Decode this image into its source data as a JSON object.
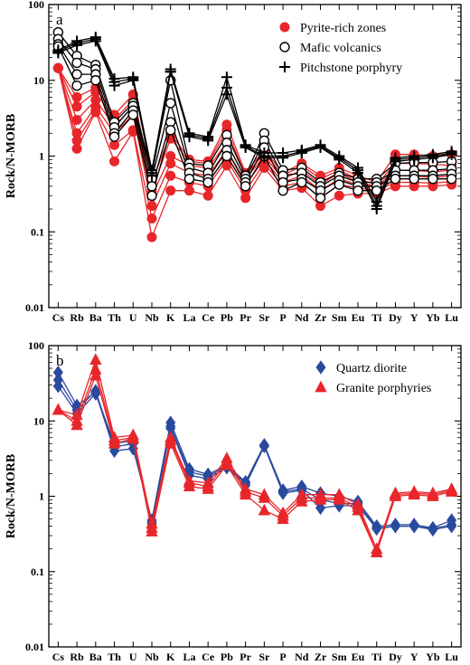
{
  "chart_data": [
    {
      "type": "line",
      "panel_label": "a",
      "ylabel": "Rock/N-MORB",
      "yscale": "log",
      "ylim": [
        0.01,
        100
      ],
      "yticks": [
        "0.01",
        "0.1",
        "1",
        "10",
        "100"
      ],
      "categories": [
        "Cs",
        "Rb",
        "Ba",
        "Th",
        "U",
        "Nb",
        "K",
        "La",
        "Ce",
        "Pb",
        "Pr",
        "Sr",
        "P",
        "Nd",
        "Zr",
        "Sm",
        "Eu",
        "Ti",
        "Dy",
        "Y",
        "Yb",
        "Lu"
      ],
      "legend_position": "top-right",
      "series": [
        {
          "name": "Pyrite-rich zones",
          "color": "#e8262a",
          "marker": "filled-circle",
          "samples": [
            [
              14.5,
              6.0,
              8.0,
              3.5,
              6.5,
              0.45,
              2.0,
              0.9,
              0.85,
              2.6,
              0.6,
              1.2,
              0.6,
              0.8,
              0.55,
              0.7,
              0.55,
              0.45,
              1.05,
              1.05,
              1.0,
              1.05
            ],
            [
              14.5,
              4.5,
              7.0,
              3.0,
              5.5,
              0.35,
              1.7,
              0.85,
              0.8,
              2.2,
              0.55,
              1.1,
              0.55,
              0.75,
              0.5,
              0.65,
              0.5,
              0.42,
              0.8,
              0.8,
              0.78,
              0.75
            ],
            [
              14.5,
              3.0,
              5.5,
              2.5,
              4.5,
              0.3,
              1.0,
              0.75,
              0.7,
              1.5,
              0.5,
              1.0,
              0.5,
              0.65,
              0.42,
              0.6,
              0.45,
              0.4,
              0.65,
              0.65,
              0.62,
              0.65
            ],
            [
              14.5,
              2.0,
              4.5,
              2.0,
              3.5,
              0.22,
              0.8,
              0.6,
              0.55,
              1.2,
              0.42,
              0.9,
              0.45,
              0.55,
              0.35,
              0.5,
              0.42,
              0.38,
              0.55,
              0.55,
              0.52,
              0.55
            ],
            [
              14.5,
              1.6,
              4.0,
              1.4,
              2.2,
              0.15,
              0.55,
              0.45,
              0.4,
              0.9,
              0.35,
              0.8,
              0.4,
              0.45,
              0.28,
              0.42,
              0.38,
              0.35,
              0.45,
              0.45,
              0.44,
              0.46
            ],
            [
              14.5,
              1.25,
              3.8,
              0.85,
              2.1,
              0.085,
              0.35,
              0.35,
              0.3,
              0.75,
              0.28,
              0.7,
              0.35,
              0.38,
              0.22,
              0.3,
              0.32,
              0.32,
              0.4,
              0.4,
              0.4,
              0.42
            ]
          ]
        },
        {
          "name": "Mafic volcanics",
          "color": "#000000",
          "marker": "open-circle",
          "samples": [
            [
              43,
              21,
              16,
              2.8,
              5.0,
              0.6,
              10.0,
              0.8,
              0.75,
              1.9,
              0.55,
              2.0,
              0.65,
              0.7,
              0.45,
              0.6,
              0.5,
              0.5,
              0.8,
              0.82,
              0.82,
              0.85
            ],
            [
              35,
              17,
              14,
              2.4,
              4.6,
              0.5,
              5.0,
              0.7,
              0.6,
              1.5,
              0.5,
              1.6,
              0.55,
              0.6,
              0.4,
              0.55,
              0.45,
              0.45,
              0.65,
              0.65,
              0.65,
              0.68
            ],
            [
              30,
              12,
              12,
              2.0,
              4.0,
              0.4,
              2.8,
              0.6,
              0.5,
              1.2,
              0.45,
              1.3,
              0.45,
              0.5,
              0.35,
              0.48,
              0.4,
              0.4,
              0.55,
              0.55,
              0.55,
              0.58
            ],
            [
              28,
              8.5,
              10,
              1.8,
              3.5,
              0.3,
              2.2,
              0.5,
              0.45,
              1.0,
              0.4,
              1.0,
              0.35,
              0.45,
              0.28,
              0.42,
              0.35,
              0.35,
              0.5,
              0.5,
              0.5,
              0.5
            ]
          ]
        },
        {
          "name": "Pitchstone porphyry",
          "color": "#000000",
          "marker": "plus",
          "samples": [
            [
              25,
              33,
              37,
              10.5,
              11,
              0.65,
              14,
              2.0,
              1.8,
              11,
              1.4,
              1.1,
              1.1,
              1.2,
              1.4,
              1.0,
              0.7,
              0.25,
              0.95,
              1.0,
              1.05,
              1.15
            ],
            [
              24,
              31,
              35,
              9.5,
              10.5,
              0.6,
              13,
              1.9,
              1.7,
              8.0,
              1.35,
              1.0,
              1.0,
              1.15,
              1.35,
              0.95,
              0.65,
              0.22,
              0.9,
              0.95,
              1.0,
              1.1
            ],
            [
              23,
              29,
              33,
              8.5,
              10,
              0.55,
              13,
              1.8,
              1.6,
              6.5,
              1.3,
              0.95,
              0.95,
              1.1,
              1.3,
              0.9,
              0.6,
              0.2,
              0.85,
              0.9,
              0.95,
              1.05
            ]
          ]
        }
      ]
    },
    {
      "type": "line",
      "panel_label": "b",
      "ylabel": "Rock/N-MORB",
      "yscale": "log",
      "ylim": [
        0.01,
        100
      ],
      "yticks": [
        "0.01",
        "0.1",
        "1",
        "10",
        "100"
      ],
      "categories": [
        "Cs",
        "Rb",
        "Ba",
        "Th",
        "U",
        "Nb",
        "K",
        "La",
        "Ce",
        "Pb",
        "Pr",
        "Sr",
        "P",
        "Nd",
        "Zr",
        "Sm",
        "Eu",
        "Ti",
        "Dy",
        "Y",
        "Yb",
        "Lu"
      ],
      "legend_position": "top-right",
      "series": [
        {
          "name": "Quartz diorite",
          "color": "#2a4a9e",
          "marker": "diamond",
          "samples": [
            [
              44,
              16,
              24,
              4.0,
              4.3,
              0.48,
              9.5,
              2.3,
              1.95,
              2.6,
              1.55,
              4.8,
              1.2,
              1.35,
              1.1,
              1.0,
              0.85,
              0.4,
              0.42,
              0.42,
              0.38,
              0.48
            ],
            [
              35,
              14,
              25,
              4.5,
              5.0,
              0.45,
              8.5,
              2.1,
              1.85,
              2.5,
              1.5,
              4.7,
              1.15,
              1.25,
              0.9,
              0.8,
              0.8,
              0.38,
              0.4,
              0.4,
              0.37,
              0.42
            ],
            [
              29,
              12.5,
              23,
              5.0,
              5.5,
              0.42,
              8.0,
              1.9,
              1.7,
              2.4,
              1.4,
              4.6,
              1.1,
              1.2,
              0.7,
              0.75,
              0.75,
              0.37,
              0.4,
              0.4,
              0.36,
              0.4
            ]
          ]
        },
        {
          "name": "Granite porphyries",
          "color": "#e8262a",
          "marker": "triangle",
          "samples": [
            [
              14,
              12,
              65,
              6.0,
              6.5,
              0.43,
              6.0,
              1.6,
              1.5,
              3.2,
              1.25,
              1.05,
              0.6,
              1.05,
              1.05,
              1.05,
              0.78,
              0.2,
              1.1,
              1.15,
              1.1,
              1.25
            ],
            [
              14,
              10,
              48,
              5.5,
              6.0,
              0.38,
              5.5,
              1.5,
              1.35,
              2.9,
              1.15,
              0.95,
              0.55,
              0.95,
              0.95,
              0.95,
              0.72,
              0.18,
              1.05,
              1.1,
              1.05,
              1.2
            ],
            [
              14,
              8.8,
              40,
              5.0,
              5.8,
              0.34,
              5.0,
              1.35,
              1.25,
              2.6,
              1.05,
              0.65,
              0.5,
              0.85,
              0.9,
              0.9,
              0.65,
              0.18,
              1.0,
              1.05,
              1.0,
              1.15
            ]
          ]
        }
      ]
    }
  ]
}
